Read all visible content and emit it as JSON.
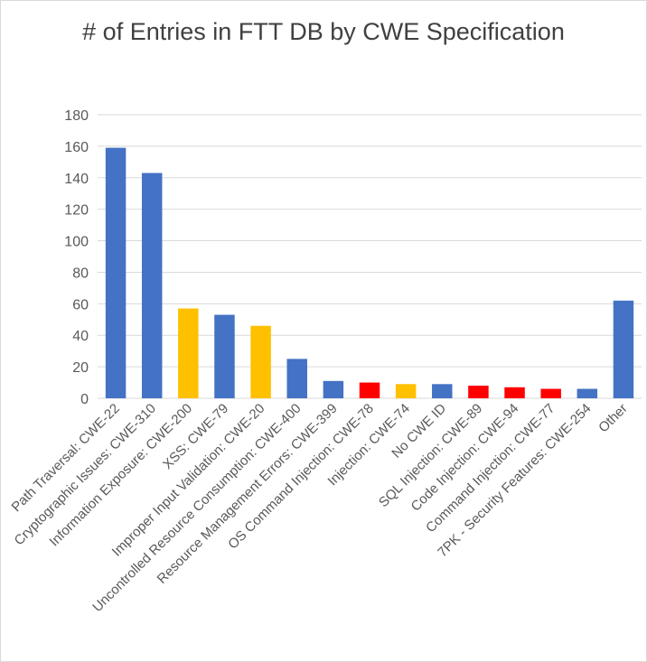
{
  "chart_data": {
    "type": "bar",
    "title": "# of Entries in FTT DB by CWE Specification",
    "xlabel": "",
    "ylabel": "",
    "ylim": [
      0,
      180
    ],
    "yticks": [
      0,
      20,
      40,
      60,
      80,
      100,
      120,
      140,
      160,
      180
    ],
    "grid": true,
    "legend": "none",
    "categories": [
      "Path Traversal: CWE-22",
      "Cryptographic Issues: CWE-310",
      "Information Exposure: CWE-200",
      "XSS: CWE-79",
      "Improper Input Validation: CWE-20",
      "Uncontrolled Resource Consumption: CWE-400",
      "Resource Management Errors: CWE-399",
      "OS Command Injection: CWE-78",
      "Injection: CWE-74",
      "No CWE ID",
      "SQL Injection: CWE-89",
      "Code Injection: CWE-94",
      "Command Injection: CWE-77",
      "7PK - Security Features: CWE-254",
      "Other"
    ],
    "values": [
      159,
      143,
      57,
      53,
      46,
      25,
      11,
      10,
      9,
      9,
      8,
      7,
      6,
      6,
      62
    ],
    "bar_colors": [
      "#4472C4",
      "#4472C4",
      "#FFC000",
      "#4472C4",
      "#FFC000",
      "#4472C4",
      "#4472C4",
      "#FF0000",
      "#FFC000",
      "#4472C4",
      "#FF0000",
      "#FF0000",
      "#FF0000",
      "#4472C4",
      "#4472C4"
    ]
  },
  "colors": {
    "gridline": "#d9d9d9",
    "axis_text": "#595959",
    "title_text": "#404040"
  }
}
